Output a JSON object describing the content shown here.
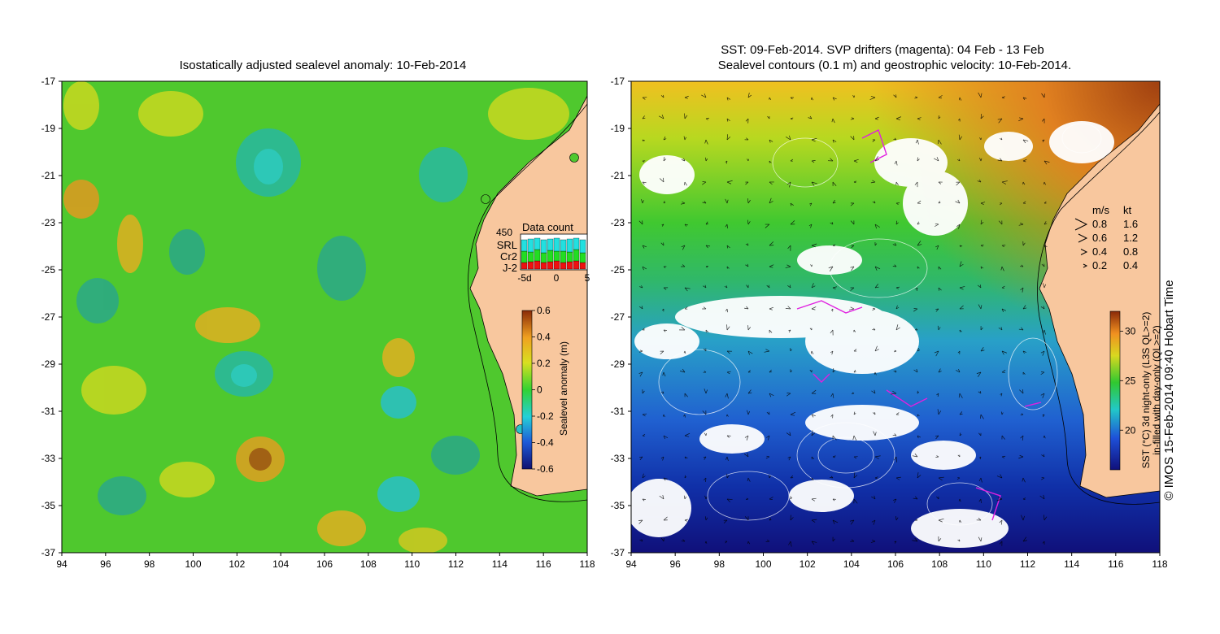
{
  "left_map": {
    "title": "Isostatically adjusted sealevel anomaly: 10-Feb-2014",
    "x_ticks": [
      "94",
      "96",
      "98",
      "100",
      "102",
      "104",
      "106",
      "108",
      "110",
      "112",
      "114",
      "116",
      "118"
    ],
    "y_ticks": [
      "-17",
      "-19",
      "-21",
      "-23",
      "-25",
      "-27",
      "-29",
      "-31",
      "-33",
      "-35",
      "-37"
    ],
    "colorbar": {
      "label": "Sealevel anomaly (m)",
      "ticks": [
        "0.6",
        "0.4",
        "0.2",
        "0",
        "-0.2",
        "-0.4",
        "-0.6"
      ],
      "range": [
        -0.6,
        0.6
      ]
    },
    "data_count": {
      "title": "Data count",
      "max_label": "450",
      "sources": [
        {
          "name": "SRL",
          "color": "#22e0e0"
        },
        {
          "name": "Cr2",
          "color": "#22dd22"
        },
        {
          "name": "J-2",
          "color": "#ee1111"
        }
      ],
      "x_ticks": [
        "-5d",
        "0",
        "5"
      ]
    }
  },
  "right_map": {
    "title_line1": "SST: 09-Feb-2014. SVP drifters (magenta): 04 Feb - 13 Feb",
    "title_line2": "Sealevel contours (0.1 m) and geostrophic velocity: 10-Feb-2014.",
    "x_ticks": [
      "94",
      "96",
      "98",
      "100",
      "102",
      "104",
      "106",
      "108",
      "110",
      "112",
      "114",
      "116",
      "118"
    ],
    "y_ticks": [
      "-17",
      "-19",
      "-21",
      "-23",
      "-25",
      "-27",
      "-29",
      "-31",
      "-33",
      "-35",
      "-37"
    ],
    "velocity_legend": {
      "header_ms": "m/s",
      "header_kt": "kt",
      "rows": [
        {
          "ms": "0.8",
          "kt": "1.6"
        },
        {
          "ms": "0.6",
          "kt": "1.2"
        },
        {
          "ms": "0.4",
          "kt": "0.8"
        },
        {
          "ms": "0.2",
          "kt": "0.4"
        }
      ]
    },
    "colorbar": {
      "label_line1": "SST (°C) 3d night-only (L3S QL>=2)",
      "label_line2": "in-filled with day-only (QL>=2)",
      "ticks": [
        "30",
        "25",
        "20"
      ],
      "range": [
        16,
        32
      ]
    },
    "copyright": "© IMOS 15-Feb-2014 09:40 Hobart Time"
  },
  "colors": {
    "land": "#f8c79e",
    "ocean_green": "#4fc82e",
    "sst_cold": "#1030a0",
    "sst_warm": "#c05010"
  }
}
